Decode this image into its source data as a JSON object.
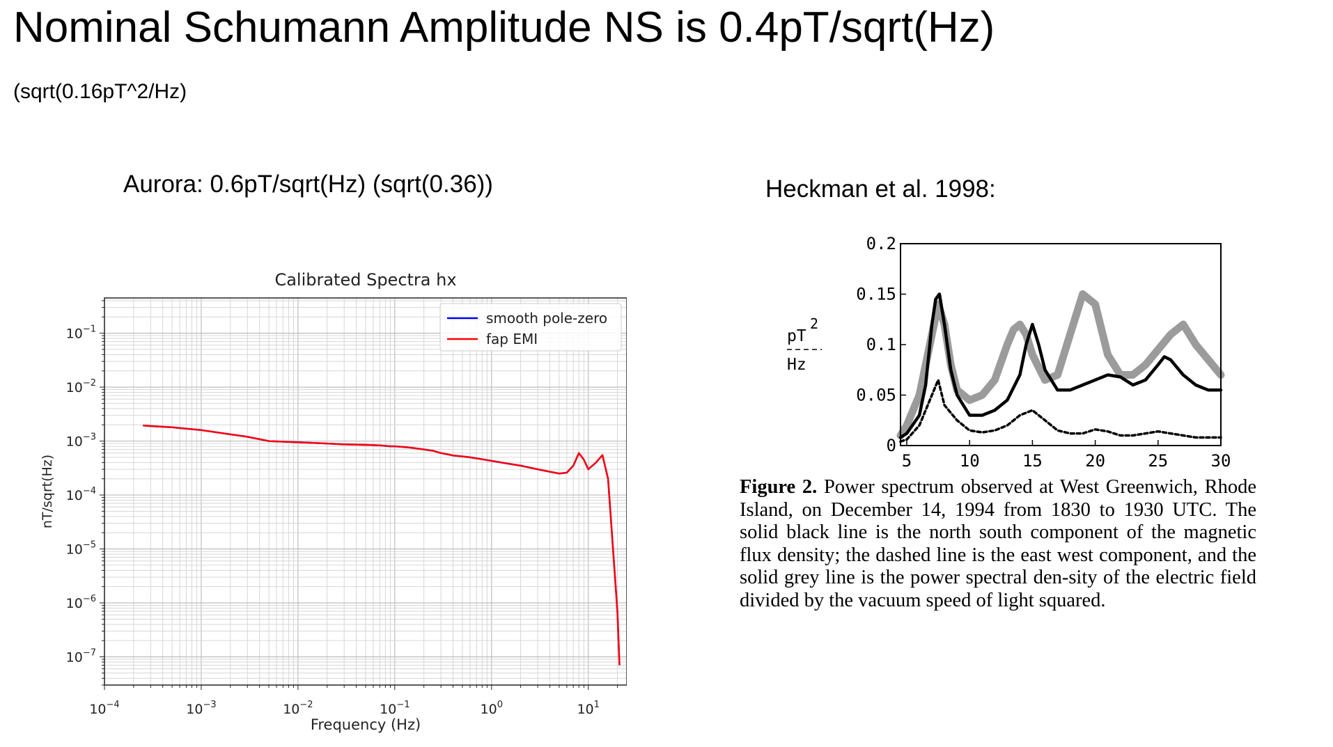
{
  "slide": {
    "title": "Nominal Schumann Amplitude NS is 0.4pT/sqrt(Hz)",
    "subtitle": "(sqrt(0.16pT^2/Hz)",
    "left_caption": "Aurora: 0.6pT/sqrt(Hz) (sqrt(0.36))",
    "right_caption": "Heckman et al. 1998:"
  },
  "figure_caption": {
    "label": "Figure 2.",
    "text": "Power spectrum observed at West Greenwich, Rhode Island, on December 14, 1994 from 1830 to 1930 UTC. The solid black line is the north south component of the magnetic flux density; the dashed line is the east west component, and the solid grey line is the power spectral den-sity of the electric field divided by the vacuum speed of light squared."
  },
  "chart_data": [
    {
      "type": "line",
      "title": "Calibrated Spectra hx",
      "xlabel": "Frequency (Hz)",
      "ylabel": "nT/sqrt(Hz)",
      "xscale": "log",
      "yscale": "log",
      "xlim": [
        0.0001,
        25
      ],
      "ylim": [
        3e-08,
        0.45
      ],
      "grid": true,
      "legend_position": "top-right",
      "x_ticks": [
        {
          "base": "10",
          "exp": "−4"
        },
        {
          "base": "10",
          "exp": "−3"
        },
        {
          "base": "10",
          "exp": "−2"
        },
        {
          "base": "10",
          "exp": "−1"
        },
        {
          "base": "10",
          "exp": "0"
        },
        {
          "base": "10",
          "exp": "1"
        }
      ],
      "y_ticks": [
        {
          "base": "10",
          "exp": "−1"
        },
        {
          "base": "10",
          "exp": "−2"
        },
        {
          "base": "10",
          "exp": "−3"
        },
        {
          "base": "10",
          "exp": "−4"
        },
        {
          "base": "10",
          "exp": "−5"
        },
        {
          "base": "10",
          "exp": "−6"
        },
        {
          "base": "10",
          "exp": "−7"
        }
      ],
      "series": [
        {
          "name": "smooth pole-zero",
          "color": "#0000ff",
          "x": [
            0.00025,
            0.0003,
            0.0005,
            0.001,
            0.003,
            0.005,
            0.01,
            0.02,
            0.03,
            0.05,
            0.07,
            0.09,
            0.1,
            0.12,
            0.15,
            0.2,
            0.25,
            0.3,
            0.35,
            0.4,
            0.5,
            0.6,
            0.8,
            1,
            1.5,
            2,
            3,
            4,
            5,
            6,
            7,
            8,
            9,
            10,
            12,
            14,
            16,
            18,
            20,
            21
          ],
          "y": [
            0.00195,
            0.0019,
            0.0018,
            0.0016,
            0.0012,
            0.001,
            0.00095,
            0.0009,
            0.00087,
            0.00085,
            0.00083,
            0.0008,
            0.0008,
            0.00078,
            0.00075,
            0.0007,
            0.00066,
            0.0006,
            0.00057,
            0.00054,
            0.00052,
            0.0005,
            0.00046,
            0.00043,
            0.00038,
            0.00035,
            0.0003,
            0.00027,
            0.00025,
            0.00026,
            0.00035,
            0.0006,
            0.00045,
            0.0003,
            0.0004,
            0.00055,
            0.0002,
            1e-05,
            7e-07,
            7e-08
          ]
        },
        {
          "name": "fap EMI",
          "color": "#ff0000",
          "x": [
            0.00025,
            0.0003,
            0.0005,
            0.001,
            0.003,
            0.005,
            0.01,
            0.02,
            0.03,
            0.05,
            0.07,
            0.09,
            0.1,
            0.12,
            0.15,
            0.2,
            0.25,
            0.3,
            0.35,
            0.4,
            0.5,
            0.6,
            0.8,
            1,
            1.5,
            2,
            3,
            4,
            5,
            6,
            7,
            8,
            9,
            10,
            12,
            14,
            16,
            18,
            20,
            21
          ],
          "y": [
            0.00195,
            0.0019,
            0.0018,
            0.0016,
            0.0012,
            0.001,
            0.00095,
            0.0009,
            0.00087,
            0.00085,
            0.00083,
            0.0008,
            0.0008,
            0.00078,
            0.00075,
            0.0007,
            0.00066,
            0.0006,
            0.00057,
            0.00054,
            0.00052,
            0.0005,
            0.00046,
            0.00043,
            0.00038,
            0.00035,
            0.0003,
            0.00027,
            0.00025,
            0.00026,
            0.00035,
            0.0006,
            0.00045,
            0.0003,
            0.0004,
            0.00055,
            0.0002,
            1e-05,
            7e-07,
            7e-08
          ]
        }
      ]
    },
    {
      "type": "line",
      "title": "",
      "xlabel": "",
      "ylabel_num": "pT",
      "ylabel_exp": "2",
      "ylabel_den": "Hz",
      "xlim": [
        4.5,
        30
      ],
      "ylim": [
        0,
        0.2
      ],
      "x_ticks": [
        "5",
        "10",
        "15",
        "20",
        "25",
        "30"
      ],
      "y_ticks": [
        "0",
        "0.05",
        "0.1",
        "0.15",
        "0.2"
      ],
      "series": [
        {
          "style": "solid black",
          "x": [
            4.5,
            5,
            6,
            6.5,
            7,
            7.3,
            7.6,
            8,
            8.5,
            9,
            10,
            11,
            12,
            13,
            14,
            14.5,
            15,
            15.5,
            16,
            17,
            18,
            19,
            20,
            21,
            22,
            23,
            24,
            25,
            25.5,
            26,
            27,
            28,
            29,
            30
          ],
          "y": [
            0.008,
            0.012,
            0.03,
            0.06,
            0.12,
            0.145,
            0.15,
            0.12,
            0.075,
            0.05,
            0.03,
            0.03,
            0.035,
            0.045,
            0.07,
            0.1,
            0.12,
            0.1,
            0.075,
            0.055,
            0.055,
            0.06,
            0.065,
            0.07,
            0.068,
            0.06,
            0.065,
            0.08,
            0.088,
            0.085,
            0.07,
            0.06,
            0.055,
            0.055
          ]
        },
        {
          "style": "dashed black",
          "x": [
            4.5,
            5,
            6,
            7,
            7.5,
            8,
            9,
            10,
            11,
            12,
            13,
            14,
            15,
            16,
            17,
            18,
            19,
            20,
            21,
            22,
            23,
            24,
            25,
            26,
            27,
            28,
            29,
            30
          ],
          "y": [
            0.004,
            0.006,
            0.02,
            0.05,
            0.065,
            0.04,
            0.025,
            0.015,
            0.013,
            0.015,
            0.02,
            0.03,
            0.035,
            0.025,
            0.015,
            0.012,
            0.012,
            0.016,
            0.014,
            0.01,
            0.01,
            0.012,
            0.014,
            0.012,
            0.01,
            0.008,
            0.008,
            0.008
          ]
        },
        {
          "style": "thick grey",
          "x": [
            4.5,
            5,
            6,
            7,
            7.5,
            8,
            8.5,
            9,
            10,
            11,
            12,
            13,
            13.5,
            14,
            14.5,
            15,
            16,
            17,
            18,
            19,
            20,
            21,
            22,
            23,
            24,
            25,
            26,
            27,
            28,
            29,
            30
          ],
          "y": [
            0.01,
            0.02,
            0.05,
            0.11,
            0.14,
            0.12,
            0.08,
            0.055,
            0.045,
            0.05,
            0.065,
            0.1,
            0.115,
            0.12,
            0.11,
            0.09,
            0.065,
            0.07,
            0.11,
            0.15,
            0.14,
            0.09,
            0.07,
            0.07,
            0.08,
            0.095,
            0.11,
            0.12,
            0.1,
            0.085,
            0.07
          ]
        }
      ]
    }
  ]
}
